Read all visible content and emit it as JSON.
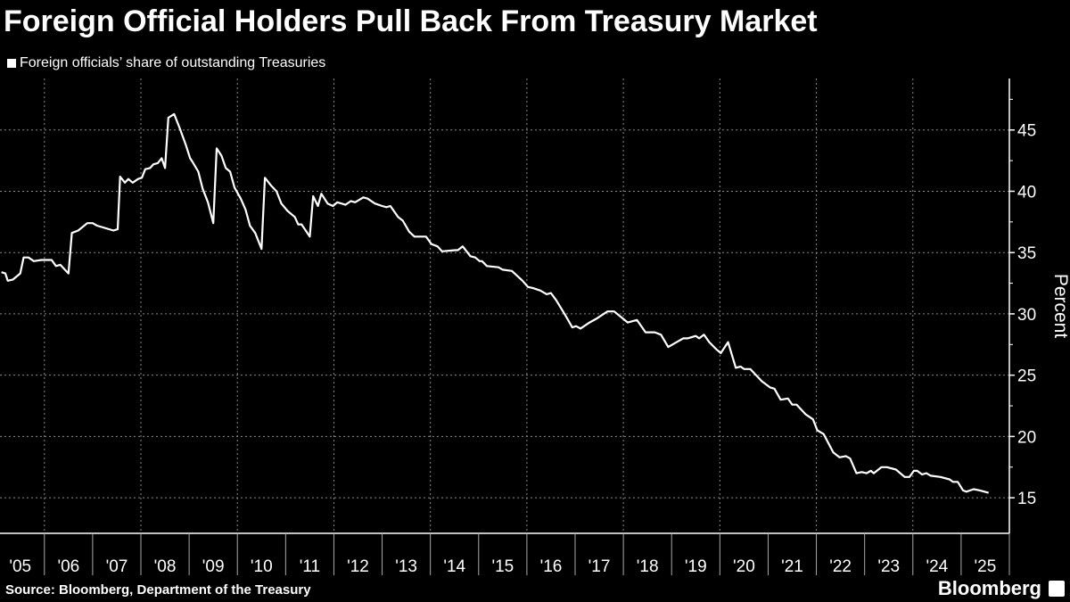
{
  "title": "Foreign Official Holders Pull Back From Treasury Market",
  "source": "Source: Bloomberg, Department of the Treasury",
  "logo": "Bloomberg",
  "colors": {
    "background": "#000000",
    "line": "#ffffff",
    "grid": "#8a8a8a"
  },
  "chart_data": {
    "type": "line",
    "title": "Foreign Official Holders Pull Back From Treasury Market",
    "ylabel": "Percent",
    "xlabel": "",
    "ylim": [
      12.1,
      49.2
    ],
    "xlim": [
      2005.08,
      2026.0
    ],
    "yticks": [
      15,
      20,
      25,
      30,
      35,
      40,
      45
    ],
    "xtick_labels": [
      "'05",
      "'06",
      "'07",
      "'08",
      "'09",
      "'10",
      "'11",
      "'12",
      "'13",
      "'14",
      "'15",
      "'16",
      "'17",
      "'18",
      "'19",
      "'20",
      "'21",
      "'22",
      "'23",
      "'24",
      "'25"
    ],
    "grid": true,
    "legend_position": "top-left",
    "y_axis_side": "right",
    "series": [
      {
        "name": "Foreign officials’ share of outstanding Treasuries",
        "x": [
          2005.11,
          2005.19,
          2005.24,
          2005.35,
          2005.5,
          2005.57,
          2005.67,
          2005.78,
          2005.94,
          2006.15,
          2006.24,
          2006.33,
          2006.5,
          2006.57,
          2006.7,
          2006.89,
          2007.0,
          2007.09,
          2007.43,
          2007.52,
          2007.57,
          2007.67,
          2007.74,
          2007.83,
          2007.94,
          2008.02,
          2008.09,
          2008.19,
          2008.26,
          2008.35,
          2008.43,
          2008.5,
          2008.57,
          2008.69,
          2008.81,
          2008.93,
          2009.02,
          2009.07,
          2009.19,
          2009.28,
          2009.39,
          2009.5,
          2009.57,
          2009.67,
          2009.76,
          2009.85,
          2009.94,
          2010.07,
          2010.17,
          2010.26,
          2010.37,
          2010.5,
          2010.57,
          2010.69,
          2010.81,
          2010.91,
          2011.04,
          2011.19,
          2011.26,
          2011.33,
          2011.5,
          2011.57,
          2011.67,
          2011.74,
          2011.87,
          2011.98,
          2012.07,
          2012.24,
          2012.35,
          2012.44,
          2012.61,
          2012.7,
          2012.85,
          2013.0,
          2013.09,
          2013.17,
          2013.33,
          2013.43,
          2013.56,
          2013.67,
          2013.91,
          2014.02,
          2014.15,
          2014.24,
          2014.52,
          2014.57,
          2014.67,
          2014.83,
          2014.93,
          2015.02,
          2015.07,
          2015.17,
          2015.41,
          2015.5,
          2015.69,
          2015.91,
          2016.02,
          2016.13,
          2016.28,
          2016.41,
          2016.5,
          2016.61,
          2016.78,
          2016.94,
          2017.02,
          2017.11,
          2017.3,
          2017.44,
          2017.67,
          2017.81,
          2018.09,
          2018.28,
          2018.46,
          2018.65,
          2018.78,
          2018.93,
          2019.24,
          2019.33,
          2019.5,
          2019.57,
          2019.67,
          2019.78,
          2019.93,
          2020.02,
          2020.17,
          2020.33,
          2020.43,
          2020.5,
          2020.63,
          2020.87,
          2021.04,
          2021.13,
          2021.26,
          2021.41,
          2021.5,
          2021.59,
          2021.78,
          2021.93,
          2022.02,
          2022.15,
          2022.35,
          2022.48,
          2022.61,
          2022.7,
          2022.83,
          2022.94,
          2023.04,
          2023.13,
          2023.19,
          2023.35,
          2023.46,
          2023.65,
          2023.83,
          2023.93,
          2024.02,
          2024.09,
          2024.19,
          2024.28,
          2024.37,
          2024.57,
          2024.76,
          2024.83,
          2024.93,
          2025.04,
          2025.11,
          2025.26,
          2025.39,
          2025.57
        ],
        "y": [
          33.4,
          33.3,
          32.7,
          32.8,
          33.3,
          34.6,
          34.6,
          34.3,
          34.4,
          34.4,
          33.9,
          34.0,
          33.3,
          36.6,
          36.8,
          37.4,
          37.4,
          37.2,
          36.8,
          36.9,
          41.2,
          40.7,
          41.0,
          40.7,
          41.0,
          41.1,
          41.8,
          41.9,
          42.2,
          42.3,
          42.7,
          41.9,
          46.0,
          46.3,
          45.1,
          43.8,
          42.7,
          42.4,
          41.6,
          40.2,
          39.1,
          37.4,
          43.5,
          42.9,
          41.9,
          41.6,
          40.3,
          39.4,
          38.5,
          37.2,
          36.6,
          35.3,
          41.1,
          40.5,
          40.0,
          39.0,
          38.4,
          37.9,
          37.3,
          37.3,
          36.3,
          39.6,
          38.8,
          39.8,
          39.0,
          38.8,
          39.1,
          38.9,
          39.2,
          39.1,
          39.5,
          39.4,
          39.0,
          38.8,
          38.7,
          38.8,
          37.9,
          37.6,
          36.7,
          36.3,
          36.3,
          35.7,
          35.5,
          35.1,
          35.2,
          35.2,
          35.5,
          34.7,
          34.6,
          34.3,
          34.3,
          33.9,
          33.8,
          33.6,
          33.5,
          32.7,
          32.2,
          32.1,
          31.9,
          31.6,
          31.7,
          31.1,
          30.0,
          28.9,
          29.0,
          28.8,
          29.3,
          29.6,
          30.2,
          30.2,
          29.3,
          29.5,
          28.5,
          28.5,
          28.3,
          27.3,
          28.0,
          28.0,
          28.2,
          28.0,
          28.3,
          27.7,
          27.1,
          26.8,
          27.7,
          25.6,
          25.7,
          25.5,
          25.5,
          24.5,
          24.0,
          23.9,
          23.0,
          23.1,
          22.6,
          22.6,
          21.8,
          21.4,
          20.5,
          20.2,
          18.7,
          18.3,
          18.4,
          18.2,
          17.0,
          17.1,
          17.0,
          17.2,
          17.0,
          17.5,
          17.5,
          17.3,
          16.7,
          16.7,
          17.2,
          17.2,
          16.9,
          17.0,
          16.8,
          16.7,
          16.5,
          16.3,
          16.3,
          15.6,
          15.5,
          15.7,
          15.6,
          15.4
        ]
      }
    ]
  }
}
